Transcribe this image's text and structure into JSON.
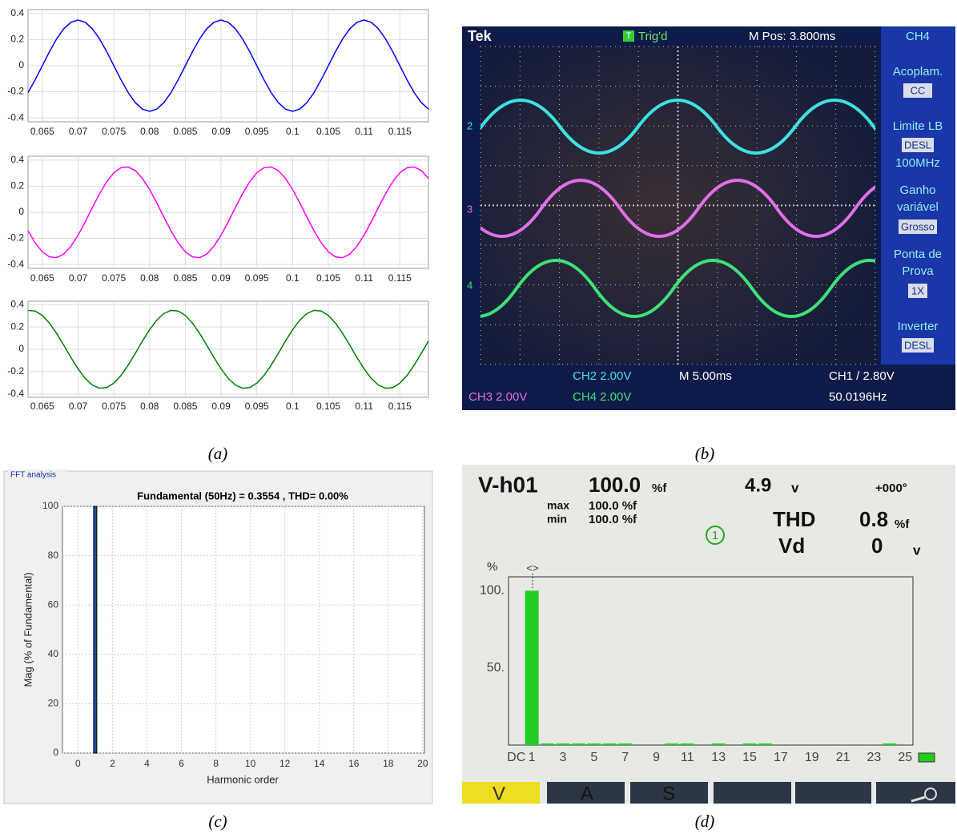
{
  "captions": {
    "a": "(a)",
    "b": "(b)",
    "c": "(c)",
    "d": "(d)"
  },
  "chart_data": [
    {
      "type": "line",
      "x": [
        0.063,
        0.064,
        0.065,
        0.066,
        0.067,
        0.068,
        0.069,
        0.07,
        0.071,
        0.072,
        0.073,
        0.074,
        0.075,
        0.076,
        0.077,
        0.078,
        0.079,
        0.08,
        0.081,
        0.082,
        0.083,
        0.084,
        0.085,
        0.086,
        0.087,
        0.088,
        0.089,
        0.09,
        0.091,
        0.092,
        0.093,
        0.094,
        0.095,
        0.096,
        0.097,
        0.098,
        0.099,
        0.1,
        0.101,
        0.102,
        0.103,
        0.104,
        0.105,
        0.106,
        0.107,
        0.108,
        0.109,
        0.11,
        0.111,
        0.112,
        0.113,
        0.114,
        0.115,
        0.116,
        0.117,
        0.118,
        0.119
      ],
      "series": [
        {
          "color": "#0000ff",
          "values": [
            -0.206,
            -0.108,
            0,
            0.108,
            0.206,
            0.283,
            0.333,
            0.35,
            0.333,
            0.283,
            0.206,
            0.108,
            0,
            -0.108,
            -0.206,
            -0.283,
            -0.333,
            -0.35,
            -0.333,
            -0.283,
            -0.206,
            -0.108,
            0,
            0.108,
            0.206,
            0.283,
            0.333,
            0.35,
            0.333,
            0.283,
            0.206,
            0.108,
            0,
            -0.108,
            -0.206,
            -0.283,
            -0.333,
            -0.35,
            -0.333,
            -0.283,
            -0.206,
            -0.108,
            0,
            0.108,
            0.206,
            0.283,
            0.333,
            0.35,
            0.333,
            0.283,
            0.206,
            0.108,
            0,
            -0.108,
            -0.206,
            -0.283,
            -0.333
          ]
        }
      ],
      "xlim": [
        0.063,
        0.119
      ],
      "ylim": [
        -0.43,
        0.43
      ],
      "xticks": [
        0.065,
        0.07,
        0.075,
        0.08,
        0.085,
        0.09,
        0.095,
        0.1,
        0.105,
        0.11,
        0.115
      ],
      "yticks": [
        -0.4,
        -0.2,
        0,
        0.2,
        0.4
      ],
      "grid": true
    },
    {
      "type": "line",
      "x": [
        0.063,
        0.064,
        0.065,
        0.066,
        0.067,
        0.068,
        0.069,
        0.07,
        0.071,
        0.072,
        0.073,
        0.074,
        0.075,
        0.076,
        0.077,
        0.078,
        0.079,
        0.08,
        0.081,
        0.082,
        0.083,
        0.084,
        0.085,
        0.086,
        0.087,
        0.088,
        0.089,
        0.09,
        0.091,
        0.092,
        0.093,
        0.094,
        0.095,
        0.096,
        0.097,
        0.098,
        0.099,
        0.1,
        0.101,
        0.102,
        0.103,
        0.104,
        0.105,
        0.106,
        0.107,
        0.108,
        0.109,
        0.11,
        0.111,
        0.112,
        0.113,
        0.114,
        0.115,
        0.116,
        0.117,
        0.118,
        0.119
      ],
      "series": [
        {
          "color": "#ff00ff",
          "values": [
            -0.142,
            -0.234,
            -0.303,
            -0.342,
            -0.348,
            -0.32,
            -0.26,
            -0.175,
            -0.073,
            0.037,
            0.142,
            0.234,
            0.303,
            0.342,
            0.348,
            0.32,
            0.26,
            0.175,
            0.073,
            -0.037,
            -0.142,
            -0.234,
            -0.303,
            -0.342,
            -0.348,
            -0.32,
            -0.26,
            -0.175,
            -0.073,
            0.037,
            0.142,
            0.234,
            0.303,
            0.342,
            0.348,
            0.32,
            0.26,
            0.175,
            0.073,
            -0.037,
            -0.142,
            -0.234,
            -0.303,
            -0.342,
            -0.348,
            -0.32,
            -0.26,
            -0.175,
            -0.073,
            0.037,
            0.142,
            0.234,
            0.303,
            0.342,
            0.348,
            0.32,
            0.26
          ]
        }
      ],
      "xlim": [
        0.063,
        0.119
      ],
      "ylim": [
        -0.43,
        0.43
      ],
      "xticks": [
        0.065,
        0.07,
        0.075,
        0.08,
        0.085,
        0.09,
        0.095,
        0.1,
        0.105,
        0.11,
        0.115
      ],
      "yticks": [
        -0.4,
        -0.2,
        0,
        0.2,
        0.4
      ],
      "grid": true
    },
    {
      "type": "line",
      "x": [
        0.063,
        0.064,
        0.065,
        0.066,
        0.067,
        0.068,
        0.069,
        0.07,
        0.071,
        0.072,
        0.073,
        0.074,
        0.075,
        0.076,
        0.077,
        0.078,
        0.079,
        0.08,
        0.081,
        0.082,
        0.083,
        0.084,
        0.085,
        0.086,
        0.087,
        0.088,
        0.089,
        0.09,
        0.091,
        0.092,
        0.093,
        0.094,
        0.095,
        0.096,
        0.097,
        0.098,
        0.099,
        0.1,
        0.101,
        0.102,
        0.103,
        0.104,
        0.105,
        0.106,
        0.107,
        0.108,
        0.109,
        0.11,
        0.111,
        0.112,
        0.113,
        0.114,
        0.115,
        0.116,
        0.117,
        0.118,
        0.119
      ],
      "series": [
        {
          "color": "#008000",
          "values": [
            0.348,
            0.342,
            0.303,
            0.234,
            0.142,
            0.037,
            -0.073,
            -0.175,
            -0.26,
            -0.32,
            -0.348,
            -0.342,
            -0.303,
            -0.234,
            -0.142,
            -0.037,
            0.073,
            0.175,
            0.26,
            0.32,
            0.348,
            0.342,
            0.303,
            0.234,
            0.142,
            0.037,
            -0.073,
            -0.175,
            -0.26,
            -0.32,
            -0.348,
            -0.342,
            -0.303,
            -0.234,
            -0.142,
            -0.037,
            0.073,
            0.175,
            0.26,
            0.32,
            0.348,
            0.342,
            0.303,
            0.234,
            0.142,
            0.037,
            -0.073,
            -0.175,
            -0.26,
            -0.32,
            -0.348,
            -0.342,
            -0.303,
            -0.234,
            -0.142,
            -0.037,
            0.073
          ]
        }
      ],
      "xlim": [
        0.063,
        0.119
      ],
      "ylim": [
        -0.43,
        0.43
      ],
      "xticks": [
        0.065,
        0.07,
        0.075,
        0.08,
        0.085,
        0.09,
        0.095,
        0.1,
        0.105,
        0.11,
        0.115
      ],
      "yticks": [
        -0.4,
        -0.2,
        0,
        0.2,
        0.4
      ],
      "grid": true
    },
    {
      "type": "bar",
      "panel_title": "FFT analysis",
      "title": "Fundamental (50Hz) = 0.3554 , THD= 0.00%",
      "x_label": "Harmonic order",
      "y_label": "Mag (% of Fundamental)",
      "x": [
        0,
        1,
        2,
        3,
        4,
        5,
        6,
        7,
        8,
        9,
        10,
        11,
        12,
        13,
        14,
        15,
        16,
        17,
        18,
        19,
        20
      ],
      "values": [
        0,
        100,
        0,
        0,
        0,
        0,
        0,
        0,
        0,
        0,
        0,
        0,
        0,
        0,
        0,
        0,
        0,
        0,
        0,
        0,
        0
      ],
      "color": "#1f4e9c",
      "xlim": [
        -0.9,
        20.1
      ],
      "ylim": [
        0,
        100
      ],
      "xticks": [
        0,
        2,
        4,
        6,
        8,
        10,
        12,
        14,
        16,
        18,
        20
      ],
      "yticks": [
        0,
        20,
        40,
        60,
        80,
        100
      ],
      "grid": true
    },
    {
      "type": "bar",
      "y_label": "%",
      "x": [
        1,
        2,
        3,
        4,
        5,
        6,
        7,
        8,
        9,
        10,
        11,
        12,
        13,
        14,
        15,
        16,
        17,
        18,
        19,
        20,
        21,
        22,
        23,
        24,
        25
      ],
      "values": [
        100,
        1,
        1,
        1,
        1,
        1,
        1,
        0,
        0,
        1,
        1,
        0,
        1,
        0,
        1,
        1,
        0,
        0,
        0,
        0,
        0,
        0,
        0,
        1,
        0
      ],
      "color": "#22cc22",
      "xlim": [
        -0.5,
        25.5
      ],
      "ylim": [
        0,
        109
      ],
      "xticks": [
        {
          "value": 0,
          "label": "DC"
        },
        1,
        3,
        5,
        7,
        9,
        11,
        13,
        15,
        17,
        19,
        21,
        23,
        25
      ],
      "yticks": [
        {
          "value": 50,
          "label": "50."
        },
        {
          "value": 100,
          "label": "100."
        }
      ],
      "grid": false
    }
  ],
  "oscilloscope": {
    "brand": "Tek",
    "trigger_icon": "T",
    "trigger_state": "Trig'd",
    "position": "M Pos: 3.800ms",
    "menu": [
      "CH4",
      "Acoplam.",
      "CC",
      "Limite LB",
      "DESL",
      "100MHz",
      "Ganho",
      "variável",
      "Grosso",
      "Ponta de",
      "Prova",
      "1X",
      "Inverter",
      "DESL"
    ],
    "channel_markers": [
      "2",
      "3",
      "4"
    ],
    "status": [
      "CH2 2.00V",
      "M 5.00ms",
      "CH1 / 2.80V",
      "CH3 2.00V",
      "CH4 2.00V",
      "50.0196Hz"
    ]
  },
  "meter": {
    "harmonic": "V-h01",
    "percent": "100.0",
    "percent_unit": "%f",
    "voltage": "4.9",
    "voltage_unit": "v",
    "phase": "+000°",
    "max_label": "max",
    "max_value": "100.0 %f",
    "min_label": "min",
    "min_value": "100.0 %f",
    "thd_label": "THD",
    "thd_value": "0.8",
    "thd_unit": "%f",
    "vd_label": "Vd",
    "vd_value": "0",
    "vd_unit": "v",
    "phase_number": "1",
    "cursor": "<>",
    "tabs": [
      "V",
      "A",
      "S"
    ]
  }
}
